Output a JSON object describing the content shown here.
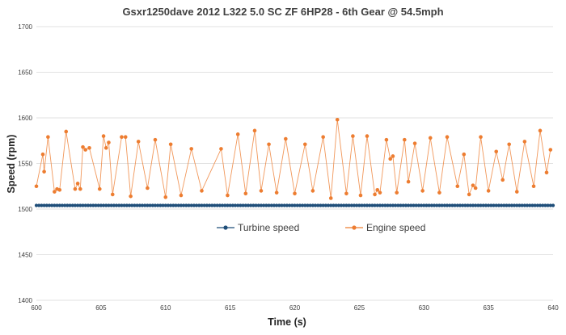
{
  "chart_data": {
    "type": "line",
    "title": "Gsxr1250dave  2012 L322 5.0 SC ZF 6HP28  -  6th Gear @ 54.5mph",
    "xlabel": "Time (s)",
    "ylabel": "Speed (rpm)",
    "xlim": [
      600,
      640
    ],
    "ylim": [
      1400,
      1700
    ],
    "x_ticks": [
      600,
      605,
      610,
      615,
      620,
      625,
      630,
      635,
      640
    ],
    "y_ticks": [
      1400,
      1450,
      1500,
      1550,
      1600,
      1650,
      1700
    ],
    "grid": "horizontal",
    "legend_position": "center",
    "series": [
      {
        "name": "Turbine speed",
        "color": "#1f4e79",
        "marker": "circle",
        "line": true,
        "x_start": 600,
        "x_end": 640,
        "x_step": 0.2,
        "value": 1504
      },
      {
        "name": "Engine speed",
        "color": "#ed7d31",
        "marker": "circle",
        "line": true,
        "points": [
          [
            600.0,
            1525
          ],
          [
            600.5,
            1560
          ],
          [
            600.6,
            1541
          ],
          [
            600.9,
            1579
          ],
          [
            601.4,
            1519
          ],
          [
            601.6,
            1522
          ],
          [
            601.8,
            1521
          ],
          [
            602.3,
            1585
          ],
          [
            603.0,
            1522
          ],
          [
            603.2,
            1528
          ],
          [
            603.4,
            1522
          ],
          [
            603.6,
            1568
          ],
          [
            603.8,
            1565
          ],
          [
            604.1,
            1567
          ],
          [
            604.9,
            1522
          ],
          [
            605.2,
            1580
          ],
          [
            605.4,
            1567
          ],
          [
            605.6,
            1573
          ],
          [
            605.9,
            1516
          ],
          [
            606.6,
            1579
          ],
          [
            606.9,
            1579
          ],
          [
            607.3,
            1514
          ],
          [
            607.9,
            1574
          ],
          [
            608.6,
            1523
          ],
          [
            609.2,
            1576
          ],
          [
            610.0,
            1513
          ],
          [
            610.4,
            1571
          ],
          [
            611.2,
            1515
          ],
          [
            612.0,
            1566
          ],
          [
            612.8,
            1520
          ],
          [
            614.3,
            1566
          ],
          [
            614.8,
            1515
          ],
          [
            615.6,
            1582
          ],
          [
            616.2,
            1517
          ],
          [
            616.9,
            1586
          ],
          [
            617.4,
            1520
          ],
          [
            618.0,
            1571
          ],
          [
            618.6,
            1518
          ],
          [
            619.3,
            1577
          ],
          [
            620.0,
            1517
          ],
          [
            620.8,
            1571
          ],
          [
            621.4,
            1520
          ],
          [
            622.2,
            1579
          ],
          [
            622.8,
            1512
          ],
          [
            623.3,
            1598
          ],
          [
            624.0,
            1517
          ],
          [
            624.5,
            1580
          ],
          [
            625.1,
            1515
          ],
          [
            625.6,
            1580
          ],
          [
            626.2,
            1516
          ],
          [
            626.4,
            1521
          ],
          [
            626.6,
            1518
          ],
          [
            627.1,
            1576
          ],
          [
            627.4,
            1555
          ],
          [
            627.6,
            1558
          ],
          [
            627.9,
            1518
          ],
          [
            628.5,
            1576
          ],
          [
            628.8,
            1530
          ],
          [
            629.3,
            1572
          ],
          [
            629.9,
            1520
          ],
          [
            630.5,
            1578
          ],
          [
            631.2,
            1518
          ],
          [
            631.8,
            1579
          ],
          [
            632.6,
            1525
          ],
          [
            633.1,
            1560
          ],
          [
            633.5,
            1516
          ],
          [
            633.8,
            1526
          ],
          [
            634.0,
            1523
          ],
          [
            634.4,
            1579
          ],
          [
            635.0,
            1520
          ],
          [
            635.6,
            1563
          ],
          [
            636.1,
            1532
          ],
          [
            636.6,
            1571
          ],
          [
            637.2,
            1519
          ],
          [
            637.8,
            1574
          ],
          [
            638.5,
            1525
          ],
          [
            639.0,
            1586
          ],
          [
            639.5,
            1540
          ],
          [
            639.8,
            1565
          ]
        ]
      }
    ]
  }
}
